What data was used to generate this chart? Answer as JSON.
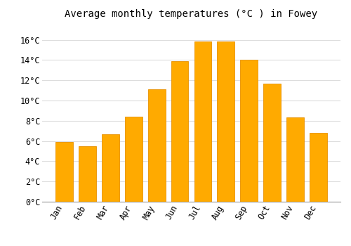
{
  "title": "Average monthly temperatures (°C ) in Fowey",
  "months": [
    "Jan",
    "Feb",
    "Mar",
    "Apr",
    "May",
    "Jun",
    "Jul",
    "Aug",
    "Sep",
    "Oct",
    "Nov",
    "Dec"
  ],
  "values": [
    5.9,
    5.5,
    6.7,
    8.4,
    11.1,
    13.9,
    15.8,
    15.8,
    14.0,
    11.7,
    8.3,
    6.8
  ],
  "bar_color": "#FFAA00",
  "bar_edge_color": "#E89000",
  "background_color": "#FFFFFF",
  "grid_color": "#DDDDDD",
  "ylim": [
    0,
    17.5
  ],
  "yticks": [
    0,
    2,
    4,
    6,
    8,
    10,
    12,
    14,
    16
  ],
  "title_fontsize": 10,
  "tick_fontsize": 8.5,
  "bar_width": 0.75
}
